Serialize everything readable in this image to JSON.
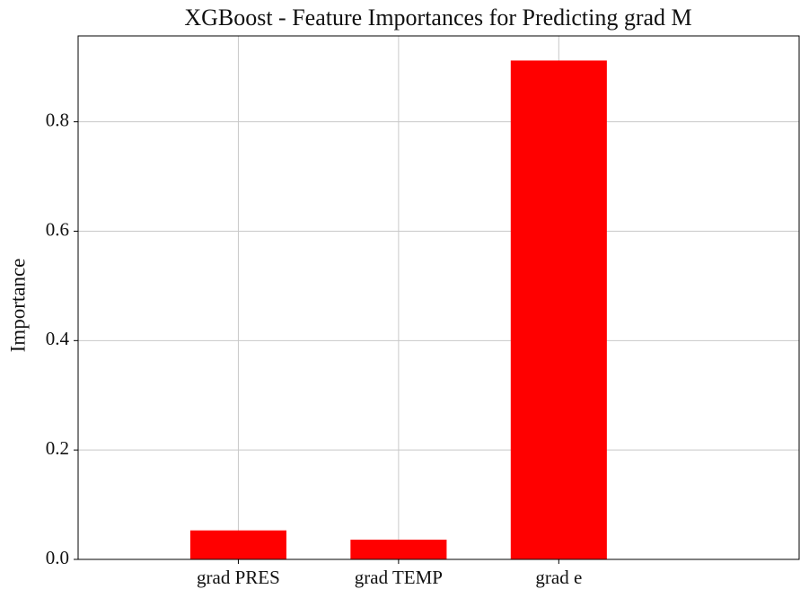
{
  "chart_data": {
    "type": "bar",
    "title": "XGBoost - Feature Importances for Predicting grad M",
    "y_label": "Importance",
    "categories": [
      "grad PRES",
      "grad TEMP",
      "grad e"
    ],
    "values": [
      0.053,
      0.036,
      0.912
    ],
    "color": "#ff0000",
    "ylim": [
      0,
      0.957
    ],
    "yticks": [
      0.0,
      0.2,
      0.4,
      0.6,
      0.8
    ],
    "grid": true
  }
}
